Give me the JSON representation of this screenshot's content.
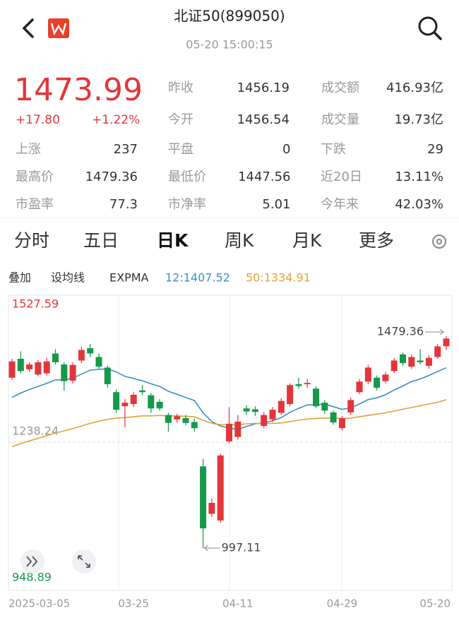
{
  "header": {
    "title": "北证50(899050)",
    "time": "05-20 15:00:15"
  },
  "quote": {
    "price": "1473.99",
    "change": "+17.80",
    "change_pct": "+1.22%",
    "stats_top": [
      [
        {
          "label": "昨收",
          "value": "1456.19"
        },
        {
          "label": "成交额",
          "value": "416.93亿"
        }
      ],
      [
        {
          "label": "今开",
          "value": "1456.54"
        },
        {
          "label": "成交量",
          "value": "19.73亿"
        }
      ]
    ],
    "stats_grid": [
      [
        {
          "label": "上涨",
          "value": "237"
        },
        {
          "label": "平盘",
          "value": "0"
        },
        {
          "label": "下跌",
          "value": "29"
        }
      ],
      [
        {
          "label": "最高价",
          "value": "1479.36"
        },
        {
          "label": "最低价",
          "value": "1447.56"
        },
        {
          "label": "近20日",
          "value": "13.11%"
        }
      ],
      [
        {
          "label": "市盈率",
          "value": "77.3"
        },
        {
          "label": "市净率",
          "value": "5.01"
        },
        {
          "label": "今年来",
          "value": "42.03%"
        }
      ]
    ]
  },
  "tabs": {
    "items": [
      "分时",
      "五日",
      "日K",
      "周K",
      "月K",
      "更多"
    ],
    "active": 2
  },
  "toolbar": {
    "items": [
      "叠加",
      "设均线",
      "EXPMA"
    ]
  },
  "chart_data": {
    "type": "candlestick",
    "categories": [
      "2025-03-05",
      null,
      null,
      null,
      null,
      null,
      null,
      null,
      null,
      null,
      null,
      null,
      null,
      null,
      "03-25",
      null,
      null,
      null,
      null,
      null,
      null,
      null,
      null,
      null,
      null,
      null,
      "04-11",
      null,
      null,
      null,
      null,
      null,
      null,
      null,
      null,
      null,
      null,
      null,
      "04-29",
      null,
      null,
      null,
      null,
      null,
      null,
      null,
      null,
      null,
      null,
      null,
      "05-20"
    ],
    "open": [
      1385,
      1428,
      1404,
      1392,
      1395,
      1440,
      1415,
      1378,
      1424,
      1452,
      1432,
      1408,
      1352,
      1320,
      1325,
      1356,
      1345,
      1330,
      1300,
      1290,
      1293,
      1284,
      1183,
      1075,
      1060,
      1240,
      1250,
      1315,
      1313,
      1275,
      1290,
      1305,
      1325,
      1370,
      1370,
      1360,
      1328,
      1306,
      1270,
      1306,
      1352,
      1376,
      1385,
      1377,
      1400,
      1438,
      1410,
      1424,
      1412,
      1432,
      1456.54
    ],
    "high": [
      1428,
      1445,
      1420,
      1425,
      1430,
      1450,
      1420,
      1420,
      1455,
      1462,
      1440,
      1412,
      1358,
      1336,
      1352,
      1368,
      1350,
      1336,
      1305,
      1303,
      1300,
      1292,
      1200,
      1110,
      1212,
      1318,
      1300,
      1322,
      1320,
      1306,
      1318,
      1338,
      1372,
      1385,
      1382,
      1365,
      1334,
      1310,
      1298,
      1340,
      1382,
      1414,
      1390,
      1398,
      1430,
      1442,
      1438,
      1450,
      1436,
      1462,
      1479.36
    ],
    "low": [
      1380,
      1395,
      1398,
      1388,
      1390,
      1415,
      1355,
      1372,
      1418,
      1432,
      1405,
      1362,
      1305,
      1272,
      1318,
      1345,
      1305,
      1310,
      1262,
      1282,
      1276,
      1262,
      997.11,
      1068,
      1055,
      1235,
      1244,
      1300,
      1298,
      1270,
      1284,
      1300,
      1320,
      1360,
      1362,
      1315,
      1302,
      1278,
      1265,
      1300,
      1348,
      1370,
      1356,
      1372,
      1395,
      1412,
      1405,
      1415,
      1405,
      1428,
      1447.56
    ],
    "close": [
      1422,
      1400,
      1415,
      1420,
      1422,
      1420,
      1377,
      1414,
      1448,
      1440,
      1410,
      1370,
      1312,
      1328,
      1346,
      1352,
      1315,
      1315,
      1282,
      1297,
      1282,
      1270,
      1042,
      1100,
      1208,
      1280,
      1285,
      1308,
      1307,
      1300,
      1312,
      1332,
      1368,
      1366,
      1373,
      1320,
      1310,
      1283,
      1293,
      1334,
      1376,
      1408,
      1362,
      1392,
      1424,
      1418,
      1432,
      1420,
      1430,
      1456.19,
      1473.99
    ],
    "up_color": "#e2363a",
    "down_color": "#16994a",
    "lines": [
      {
        "label": "12:1407.52",
        "color": "#3b8fc4",
        "values": [
          1340,
          1350,
          1358,
          1365,
          1372,
          1380,
          1380,
          1384,
          1393,
          1402,
          1404,
          1405,
          1398,
          1388,
          1383,
          1378,
          1371,
          1365,
          1354,
          1347,
          1340,
          1333,
          1305,
          1285,
          1275,
          1270,
          1267,
          1274,
          1280,
          1282,
          1287,
          1294,
          1306,
          1315,
          1323,
          1323,
          1325,
          1319,
          1313,
          1316,
          1325,
          1335,
          1339,
          1346,
          1357,
          1366,
          1376,
          1382,
          1390,
          1399,
          1407.52
        ]
      },
      {
        "label": "50:1334.91",
        "color": "#e3a23a",
        "values": [
          1228,
          1235,
          1241,
          1247,
          1253,
          1259,
          1264,
          1269,
          1275,
          1281,
          1286,
          1290,
          1293,
          1294,
          1296,
          1298,
          1298,
          1299,
          1298,
          1298,
          1297,
          1296,
          1288,
          1281,
          1278,
          1278,
          1278,
          1280,
          1281,
          1280,
          1281,
          1282,
          1285,
          1288,
          1291,
          1292,
          1293,
          1293,
          1292,
          1293,
          1296,
          1299,
          1302,
          1305,
          1309,
          1313,
          1317,
          1321,
          1325,
          1329,
          1334.91
        ]
      }
    ],
    "ylim": [
      948.89,
      1527.59
    ],
    "yticks": [
      948.89,
      1238.24,
      1527.59
    ],
    "annotations": {
      "max": 1479.36,
      "min": 997.11
    }
  }
}
